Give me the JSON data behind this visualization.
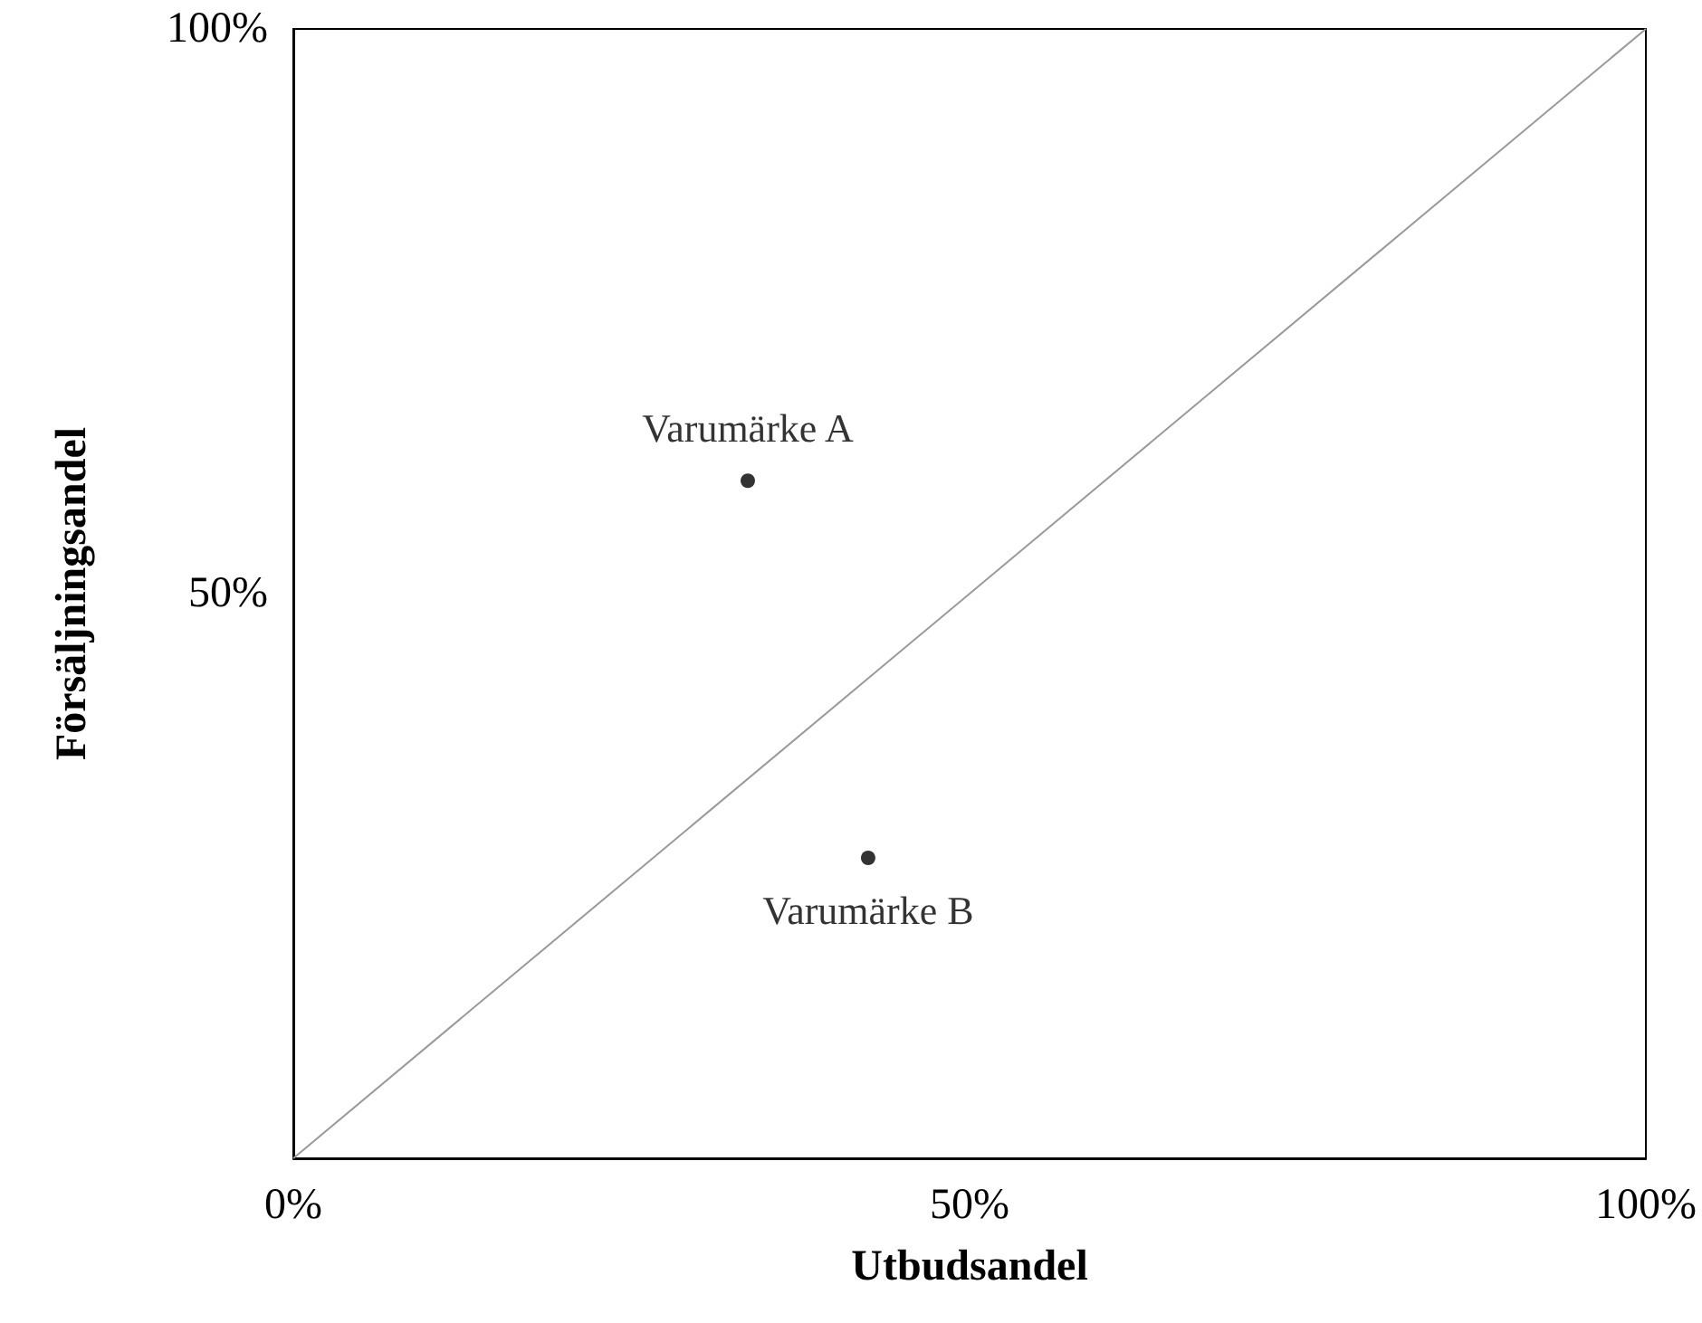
{
  "chart_data": {
    "type": "scatter",
    "xlabel": "Utbudsandel",
    "ylabel": "Försäljningsandel",
    "xlim": [
      0,
      100
    ],
    "ylim": [
      0,
      100
    ],
    "xticks": [
      {
        "value": 0,
        "label": "0%"
      },
      {
        "value": 50,
        "label": "50%"
      },
      {
        "value": 100,
        "label": "100%"
      }
    ],
    "yticks": [
      {
        "value": 0,
        "label": null
      },
      {
        "value": 50,
        "label": "50%"
      },
      {
        "value": 100,
        "label": "100%"
      }
    ],
    "grid": false,
    "legend": false,
    "marker": "circle",
    "series": [
      {
        "type": "line",
        "color": "#999999",
        "x": [
          0,
          100
        ],
        "values": [
          0,
          100
        ],
        "marker": "none"
      },
      {
        "name": "Varumärke A",
        "color": "#000000",
        "x": [
          33.6
        ],
        "values": [
          60
        ]
      },
      {
        "name": "Varumärke B",
        "color": "#000000",
        "x": [
          42.5
        ],
        "values": [
          26.6
        ]
      }
    ]
  }
}
